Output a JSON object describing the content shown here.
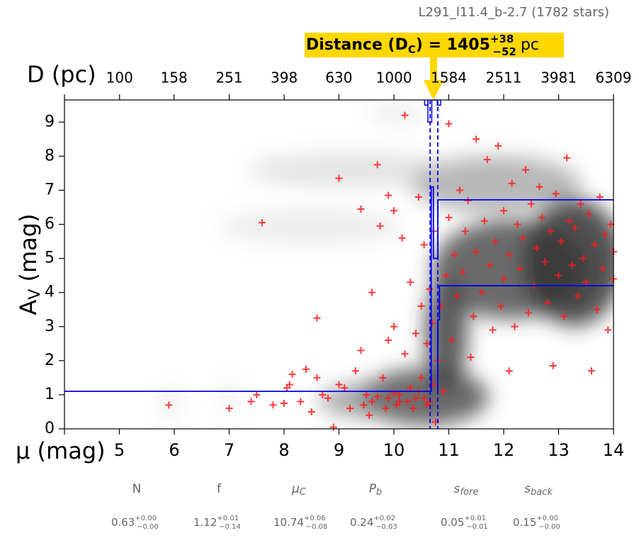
{
  "chart_data": {
    "type": "scatter",
    "title": "L291_l11.4_b-2.7 (1782 stars)",
    "annotation": {
      "text": "Distance (D",
      "sub": "C",
      "text2": ") = 1405",
      "upper": "+38",
      "lower": "−52",
      "unit": "pc"
    },
    "xlabel": "μ (mag)",
    "ylabel": {
      "main": "A",
      "sub": "V",
      "rest": " (mag)"
    },
    "x2label": "D (pc)",
    "xlim": [
      4,
      14
    ],
    "xticks": [
      5,
      6,
      7,
      8,
      9,
      10,
      11,
      12,
      13,
      14
    ],
    "x2lim": [
      63,
      6309
    ],
    "x2scale": "log",
    "x2ticks": [
      100,
      158,
      251,
      398,
      630,
      1000,
      1584,
      2511,
      3981,
      6309
    ],
    "ylim": [
      0,
      9.65
    ],
    "yticks": [
      0,
      1,
      2,
      3,
      4,
      5,
      6,
      7,
      8,
      9
    ],
    "series": [
      {
        "type": "scatter",
        "color": "#ff1a1a",
        "x": [
          5.9,
          7.0,
          7.4,
          7.5,
          7.6,
          7.8,
          8.0,
          8.05,
          8.1,
          8.15,
          8.3,
          8.4,
          8.5,
          8.6,
          8.6,
          8.7,
          8.8,
          8.9,
          9.0,
          9.0,
          9.1,
          9.2,
          9.3,
          9.4,
          9.4,
          9.5,
          9.6,
          9.6,
          9.7,
          9.75,
          9.8,
          9.9,
          9.9,
          10.0,
          10.0,
          10.0,
          10.1,
          10.15,
          10.2,
          10.2,
          10.3,
          10.3,
          10.4,
          10.4,
          10.45,
          10.5,
          10.5,
          10.55,
          10.6,
          10.6,
          10.65,
          10.7,
          10.7,
          10.72,
          10.76,
          10.8,
          10.85,
          10.9,
          10.95,
          11.0,
          11.0,
          11.05,
          11.1,
          11.15,
          11.2,
          11.25,
          11.3,
          11.35,
          11.4,
          11.45,
          11.5,
          11.5,
          11.6,
          11.65,
          11.7,
          11.75,
          11.8,
          11.85,
          11.9,
          11.95,
          12.0,
          12.0,
          12.1,
          12.1,
          12.15,
          12.2,
          12.25,
          12.3,
          12.35,
          12.4,
          12.45,
          12.5,
          12.55,
          12.6,
          12.65,
          12.7,
          12.75,
          12.8,
          12.85,
          12.9,
          12.95,
          13.0,
          13.05,
          13.1,
          13.15,
          13.2,
          13.25,
          13.3,
          13.35,
          13.4,
          13.45,
          13.5,
          13.55,
          13.6,
          13.65,
          13.7,
          13.75,
          13.8,
          13.85,
          13.9,
          13.95,
          14.0,
          14.0,
          9.85,
          9.9,
          10.05,
          10.1,
          10.25,
          10.35,
          10.45,
          10.55,
          10.65,
          9.45,
          9.55,
          9.7
        ],
        "y": [
          0.7,
          0.6,
          0.8,
          1.0,
          6.05,
          0.7,
          0.75,
          1.2,
          1.3,
          1.6,
          0.8,
          1.75,
          0.5,
          1.5,
          3.25,
          1.0,
          0.9,
          0.05,
          1.3,
          7.35,
          1.2,
          0.6,
          1.7,
          6.45,
          2.3,
          1.0,
          0.8,
          4.0,
          7.75,
          5.95,
          1.5,
          2.6,
          6.85,
          1.05,
          3.0,
          6.4,
          0.8,
          5.6,
          9.2,
          2.2,
          1.2,
          4.3,
          0.9,
          2.8,
          6.8,
          1.5,
          3.6,
          5.4,
          0.7,
          2.5,
          4.1,
          1.3,
          3.1,
          5.8,
          0.2,
          2.0,
          3.6,
          1.1,
          4.5,
          8.95,
          6.2,
          2.6,
          5.1,
          3.9,
          7.0,
          4.6,
          5.8,
          6.7,
          2.1,
          3.3,
          8.5,
          5.2,
          4.0,
          6.1,
          7.9,
          4.8,
          2.9,
          5.5,
          8.3,
          3.6,
          6.4,
          4.4,
          5.1,
          1.7,
          7.2,
          3.0,
          6.0,
          4.7,
          5.6,
          7.6,
          3.4,
          6.6,
          4.2,
          5.3,
          7.1,
          6.2,
          4.9,
          3.7,
          5.8,
          1.85,
          6.9,
          4.5,
          5.5,
          3.3,
          7.95,
          6.1,
          4.8,
          5.9,
          3.9,
          6.6,
          5.0,
          4.3,
          6.3,
          1.7,
          5.4,
          3.5,
          6.8,
          4.7,
          5.7,
          2.9,
          6.0,
          4.4,
          5.2,
          0.6,
          0.9,
          0.7,
          1.0,
          0.8,
          0.6,
          1.1,
          0.9,
          0.8,
          0.7,
          0.4,
          0.95
        ]
      },
      {
        "type": "line",
        "color": "#0000ee",
        "x": [
          4,
          10.66,
          10.66,
          10.68,
          10.68,
          10.72,
          10.72,
          10.8,
          10.8,
          14
        ],
        "y": [
          1.1,
          1.1,
          1.1,
          1.1,
          7.1,
          7.1,
          5.0,
          5.0,
          6.72,
          6.72
        ]
      },
      {
        "type": "line",
        "color": "#0000ee",
        "x": [
          10.8,
          10.8,
          10.83,
          10.83,
          14
        ],
        "y": [
          1.1,
          3.2,
          3.2,
          4.2,
          4.2
        ]
      }
    ],
    "vlines": [
      10.66,
      10.8
    ],
    "vline_color": "#0000ee",
    "posterior": {
      "color": "#0000ee",
      "bins": [
        10.56,
        10.62,
        10.69,
        10.79,
        10.85
      ],
      "values": [
        9.5,
        9.0,
        9.65,
        9.5
      ]
    },
    "parameters": [
      {
        "name": "N",
        "value": "0.63",
        "plus": "+0.00",
        "minus": "−0.00"
      },
      {
        "name": "f",
        "value": "1.12",
        "plus": "+0.01",
        "minus": "−0.14"
      },
      {
        "name": "μ",
        "sub": "C",
        "value": "10.74",
        "plus": "+0.06",
        "minus": "−0.08"
      },
      {
        "name": "P",
        "sub": "b",
        "value": "0.24",
        "plus": "+0.02",
        "minus": "−0.03"
      },
      {
        "name": "s",
        "sub": "fore",
        "value": "0.05",
        "plus": "+0.01",
        "minus": "−0.01"
      },
      {
        "name": "s",
        "sub": "back",
        "value": "0.15",
        "plus": "+0.00",
        "minus": "−0.00"
      }
    ]
  }
}
